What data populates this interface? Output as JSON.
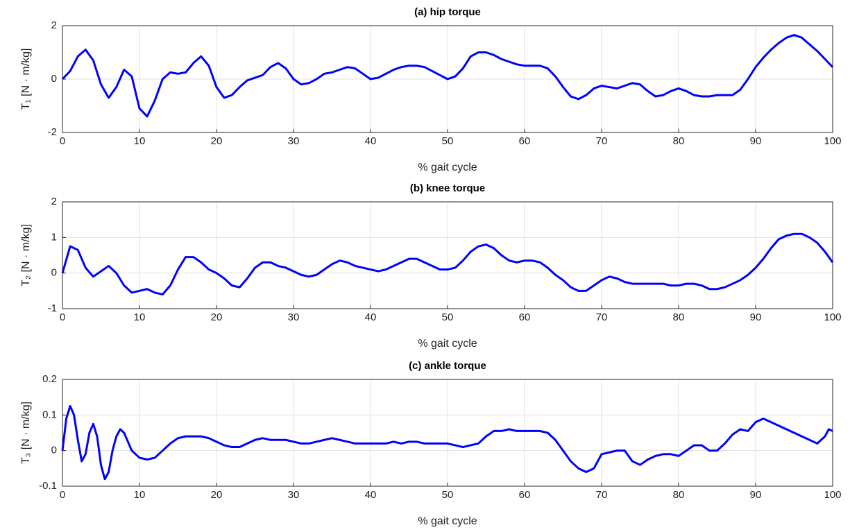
{
  "chart_data": [
    {
      "type": "line",
      "title": "(a) hip torque",
      "xlabel": "% gait cycle",
      "ylabel": "T₁ [N · m/kg]",
      "xlim": [
        0,
        100
      ],
      "xticks": [
        0,
        10,
        20,
        30,
        40,
        50,
        60,
        70,
        80,
        90,
        100
      ],
      "ylim": [
        -2,
        2
      ],
      "yticks": [
        -2,
        0,
        2
      ],
      "grid": true,
      "x": [
        0,
        1,
        2,
        3,
        4,
        5,
        6,
        7,
        8,
        9,
        10,
        11,
        12,
        13,
        14,
        15,
        16,
        17,
        18,
        19,
        20,
        21,
        22,
        23,
        24,
        25,
        26,
        27,
        28,
        29,
        30,
        31,
        32,
        33,
        34,
        35,
        36,
        37,
        38,
        39,
        40,
        41,
        42,
        43,
        44,
        45,
        46,
        47,
        48,
        49,
        50,
        51,
        52,
        53,
        54,
        55,
        56,
        57,
        58,
        59,
        60,
        61,
        62,
        63,
        64,
        65,
        66,
        67,
        68,
        69,
        70,
        71,
        72,
        73,
        74,
        75,
        76,
        77,
        78,
        79,
        80,
        81,
        82,
        83,
        84,
        85,
        86,
        87,
        88,
        89,
        90,
        91,
        92,
        93,
        94,
        95,
        96,
        97,
        98,
        99,
        100
      ],
      "series": [
        {
          "color": "#0000ff",
          "values": [
            0,
            0.3,
            0.85,
            1.1,
            0.7,
            -0.2,
            -0.7,
            -0.3,
            0.35,
            0.1,
            -1.1,
            -1.4,
            -0.8,
            0,
            0.25,
            0.2,
            0.25,
            0.6,
            0.85,
            0.5,
            -0.3,
            -0.7,
            -0.6,
            -0.3,
            -0.05,
            0.05,
            0.15,
            0.45,
            0.6,
            0.4,
            0,
            -0.2,
            -0.15,
            0,
            0.2,
            0.25,
            0.35,
            0.45,
            0.4,
            0.2,
            0,
            0.05,
            0.2,
            0.35,
            0.45,
            0.5,
            0.5,
            0.45,
            0.3,
            0.15,
            0,
            0.1,
            0.4,
            0.85,
            1,
            1,
            0.9,
            0.75,
            0.65,
            0.55,
            0.5,
            0.5,
            0.5,
            0.4,
            0.1,
            -0.3,
            -0.65,
            -0.75,
            -0.6,
            -0.35,
            -0.25,
            -0.3,
            -0.35,
            -0.25,
            -0.15,
            -0.2,
            -0.45,
            -0.65,
            -0.6,
            -0.45,
            -0.35,
            -0.45,
            -0.6,
            -0.65,
            -0.65,
            -0.6,
            -0.6,
            -0.6,
            -0.4,
            0,
            0.45,
            0.8,
            1.1,
            1.35,
            1.55,
            1.65,
            1.55,
            1.3,
            1.05,
            0.75,
            0.45
          ]
        }
      ]
    },
    {
      "type": "line",
      "title": "(b) knee torque",
      "xlabel": "% gait cycle",
      "ylabel": "T₂ [N · m/kg]",
      "xlim": [
        0,
        100
      ],
      "xticks": [
        0,
        10,
        20,
        30,
        40,
        50,
        60,
        70,
        80,
        90,
        100
      ],
      "ylim": [
        -1,
        2
      ],
      "yticks": [
        -1,
        0,
        1,
        2
      ],
      "grid": true,
      "x": [
        0,
        1,
        2,
        3,
        4,
        5,
        6,
        7,
        8,
        9,
        10,
        11,
        12,
        13,
        14,
        15,
        16,
        17,
        18,
        19,
        20,
        21,
        22,
        23,
        24,
        25,
        26,
        27,
        28,
        29,
        30,
        31,
        32,
        33,
        34,
        35,
        36,
        37,
        38,
        39,
        40,
        41,
        42,
        43,
        44,
        45,
        46,
        47,
        48,
        49,
        50,
        51,
        52,
        53,
        54,
        55,
        56,
        57,
        58,
        59,
        60,
        61,
        62,
        63,
        64,
        65,
        66,
        67,
        68,
        69,
        70,
        71,
        72,
        73,
        74,
        75,
        76,
        77,
        78,
        79,
        80,
        81,
        82,
        83,
        84,
        85,
        86,
        87,
        88,
        89,
        90,
        91,
        92,
        93,
        94,
        95,
        96,
        97,
        98,
        99,
        100
      ],
      "series": [
        {
          "color": "#0000ff",
          "values": [
            0,
            0.75,
            0.65,
            0.15,
            -0.1,
            0.05,
            0.2,
            0,
            -0.35,
            -0.55,
            -0.5,
            -0.45,
            -0.55,
            -0.6,
            -0.35,
            0.1,
            0.45,
            0.45,
            0.3,
            0.1,
            0,
            -0.15,
            -0.35,
            -0.4,
            -0.15,
            0.15,
            0.3,
            0.3,
            0.2,
            0.15,
            0.05,
            -0.05,
            -0.1,
            -0.05,
            0.1,
            0.25,
            0.35,
            0.3,
            0.2,
            0.15,
            0.1,
            0.05,
            0.1,
            0.2,
            0.3,
            0.4,
            0.4,
            0.3,
            0.2,
            0.1,
            0.1,
            0.15,
            0.35,
            0.6,
            0.75,
            0.8,
            0.7,
            0.5,
            0.35,
            0.3,
            0.35,
            0.35,
            0.3,
            0.15,
            -0.05,
            -0.2,
            -0.4,
            -0.5,
            -0.5,
            -0.35,
            -0.2,
            -0.1,
            -0.15,
            -0.25,
            -0.3,
            -0.3,
            -0.3,
            -0.3,
            -0.3,
            -0.35,
            -0.35,
            -0.3,
            -0.3,
            -0.35,
            -0.45,
            -0.45,
            -0.4,
            -0.3,
            -0.2,
            -0.05,
            0.15,
            0.4,
            0.7,
            0.95,
            1.05,
            1.1,
            1.1,
            1,
            0.85,
            0.6,
            0.3
          ]
        }
      ]
    },
    {
      "type": "line",
      "title": "(c) ankle torque",
      "xlabel": "% gait cycle",
      "ylabel": "T₃ [N · m/kg]",
      "xlim": [
        0,
        100
      ],
      "xticks": [
        0,
        10,
        20,
        30,
        40,
        50,
        60,
        70,
        80,
        90,
        100
      ],
      "ylim": [
        -0.1,
        0.2
      ],
      "yticks": [
        -0.1,
        0,
        0.1,
        0.2
      ],
      "grid": true,
      "x": [
        0,
        0.5,
        1,
        1.5,
        2,
        2.5,
        3,
        3.5,
        4,
        4.5,
        5,
        5.5,
        6,
        6.5,
        7,
        7.5,
        8,
        9,
        10,
        11,
        12,
        13,
        14,
        15,
        16,
        17,
        18,
        19,
        20,
        21,
        22,
        23,
        24,
        25,
        26,
        27,
        28,
        29,
        30,
        31,
        32,
        33,
        34,
        35,
        36,
        37,
        38,
        39,
        40,
        41,
        42,
        43,
        44,
        45,
        46,
        47,
        48,
        49,
        50,
        51,
        52,
        53,
        54,
        55,
        56,
        57,
        58,
        59,
        60,
        61,
        62,
        63,
        64,
        65,
        66,
        67,
        68,
        69,
        70,
        71,
        72,
        73,
        74,
        75,
        76,
        77,
        78,
        79,
        80,
        81,
        82,
        83,
        84,
        85,
        86,
        87,
        88,
        89,
        90,
        91,
        92,
        93,
        94,
        95,
        96,
        97,
        98,
        99,
        99.5,
        100
      ],
      "series": [
        {
          "color": "#0000ff",
          "values": [
            0,
            0.09,
            0.125,
            0.1,
            0.03,
            -0.03,
            -0.01,
            0.05,
            0.075,
            0.04,
            -0.04,
            -0.08,
            -0.06,
            0,
            0.04,
            0.06,
            0.05,
            0,
            -0.02,
            -0.025,
            -0.02,
            0,
            0.02,
            0.035,
            0.04,
            0.04,
            0.04,
            0.035,
            0.025,
            0.015,
            0.01,
            0.01,
            0.02,
            0.03,
            0.035,
            0.03,
            0.03,
            0.03,
            0.025,
            0.02,
            0.02,
            0.025,
            0.03,
            0.035,
            0.03,
            0.025,
            0.02,
            0.02,
            0.02,
            0.02,
            0.02,
            0.025,
            0.02,
            0.025,
            0.025,
            0.02,
            0.02,
            0.02,
            0.02,
            0.015,
            0.01,
            0.015,
            0.02,
            0.04,
            0.055,
            0.055,
            0.06,
            0.055,
            0.055,
            0.055,
            0.055,
            0.05,
            0.03,
            0,
            -0.03,
            -0.05,
            -0.06,
            -0.05,
            -0.01,
            -0.005,
            0,
            0,
            -0.03,
            -0.04,
            -0.025,
            -0.015,
            -0.01,
            -0.01,
            -0.015,
            0,
            0.015,
            0.015,
            0,
            0,
            0.02,
            0.045,
            0.06,
            0.055,
            0.08,
            0.09,
            0.08,
            0.07,
            0.06,
            0.05,
            0.04,
            0.03,
            0.02,
            0.04,
            0.06,
            0.055
          ]
        }
      ]
    }
  ]
}
